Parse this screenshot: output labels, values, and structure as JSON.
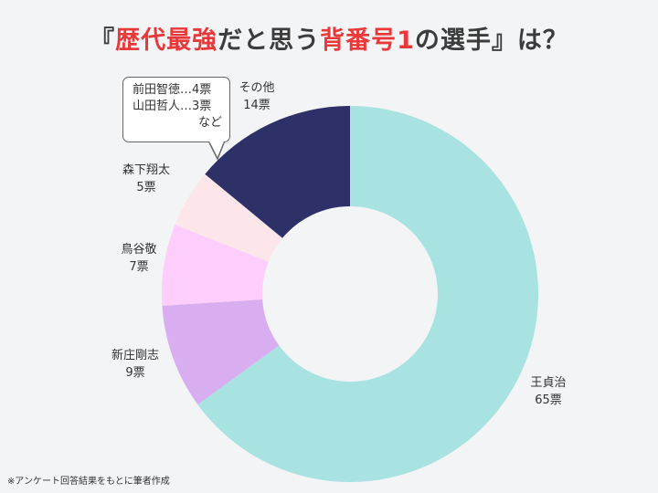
{
  "title": {
    "open": "『",
    "part1": "歴代最強",
    "part2": "だと思う",
    "part3": "背番号1",
    "part4": "の選手』は？"
  },
  "chart_data": {
    "type": "pie",
    "donut": true,
    "slices": [
      {
        "name": "王貞治",
        "value": 65,
        "label": "65票",
        "color": "#a8e3e1"
      },
      {
        "name": "新庄剛志",
        "value": 9,
        "label": "9票",
        "color": "#d9aef0"
      },
      {
        "name": "鳥谷敬",
        "value": 7,
        "label": "7票",
        "color": "#fdcdfc"
      },
      {
        "name": "森下翔太",
        "value": 5,
        "label": "5票",
        "color": "#fde6ea"
      },
      {
        "name": "その他",
        "value": 14,
        "label": "14票",
        "color": "#2d3167"
      }
    ],
    "start_angle_deg": 0,
    "direction": "clockwise"
  },
  "callout": {
    "line1": "前田智徳…4票",
    "line2": "山田哲人…3票",
    "line3": "など"
  },
  "footnote": "※アンケート回答結果をもとに筆者作成"
}
